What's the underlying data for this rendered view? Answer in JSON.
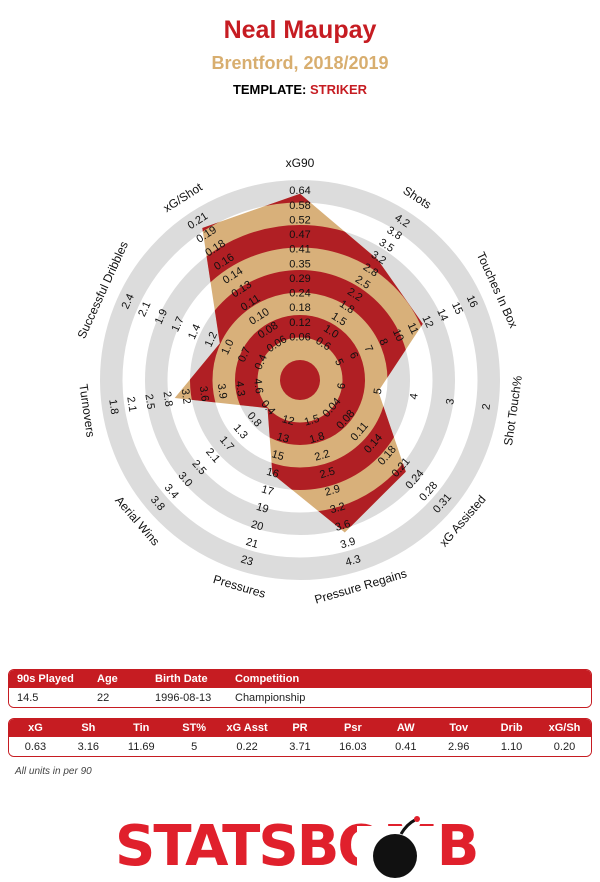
{
  "header": {
    "player": "Neal Maupay",
    "team_season": "Brentford, 2018/2019",
    "template_label": "TEMPLATE:",
    "template_value": "STRIKER"
  },
  "chart_data": {
    "type": "radar",
    "rings": 8,
    "colors": {
      "fill": "#d8b07a",
      "inner": "#b01f24",
      "grid": "#dcdcdc",
      "title": "#c61c22",
      "subtitle": "#d8ae6f"
    },
    "axes": [
      {
        "label": "xG90",
        "ticks": [
          "0.06",
          "0.12",
          "0.18",
          "0.24",
          "0.29",
          "0.35",
          "0.41",
          "0.47",
          "0.52",
          "0.58",
          "0.64"
        ],
        "value": 0.63
      },
      {
        "label": "Shots",
        "ticks": [
          "0.6",
          "1.0",
          "1.5",
          "1.8",
          "2.2",
          "2.5",
          "2.8",
          "3.2",
          "3.5",
          "3.8",
          "4.2"
        ],
        "value": 3.16
      },
      {
        "label": "Touches In Box",
        "ticks": [
          "5",
          "6",
          "7",
          "8",
          "10",
          "11",
          "12",
          "14",
          "15",
          "16"
        ],
        "value": 11.69
      },
      {
        "label": "Shot Touch%",
        "ticks": [
          "6",
          "5",
          "4",
          "3",
          "2"
        ],
        "value": 5
      },
      {
        "label": "xG Assisted",
        "ticks": [
          "0.04",
          "0.08",
          "0.11",
          "0.14",
          "0.18",
          "0.21",
          "0.24",
          "0.28",
          "0.31"
        ],
        "value": 0.22
      },
      {
        "label": "Pressure Regains",
        "ticks": [
          "1.5",
          "1.8",
          "2.2",
          "2.5",
          "2.9",
          "3.2",
          "3.6",
          "3.9",
          "4.3"
        ],
        "value": 3.71
      },
      {
        "label": "Pressures",
        "ticks": [
          "12",
          "13",
          "15",
          "16",
          "17",
          "19",
          "20",
          "21",
          "23"
        ],
        "value": 16.03
      },
      {
        "label": "Aerial Wins",
        "ticks": [
          "0.4",
          "0.8",
          "1.3",
          "1.7",
          "2.1",
          "2.5",
          "3.0",
          "3.4",
          "3.8"
        ],
        "value": 0.41
      },
      {
        "label": "Turnovers",
        "ticks": [
          "4.6",
          "4.3",
          "3.9",
          "3.6",
          "3.2",
          "2.8",
          "2.5",
          "2.1",
          "1.8"
        ],
        "value": 2.96
      },
      {
        "label": "Successful Dribbles",
        "ticks": [
          "0.4",
          "0.7",
          "1.0",
          "1.2",
          "1.4",
          "1.7",
          "1.9",
          "2.1",
          "2.4"
        ],
        "value": 1.1
      },
      {
        "label": "xG/Shot",
        "ticks": [
          "0.06",
          "0.08",
          "0.10",
          "0.11",
          "0.13",
          "0.14",
          "0.16",
          "0.18",
          "0.19",
          "0.21"
        ],
        "value": 0.2
      }
    ]
  },
  "info_table": {
    "headers": [
      "90s Played",
      "Age",
      "Birth Date",
      "Competition"
    ],
    "values": [
      "14.5",
      "22",
      "1996-08-13",
      "Championship"
    ]
  },
  "metrics_table": {
    "headers": [
      "xG",
      "Sh",
      "Tin",
      "ST%",
      "xG Asst",
      "PR",
      "Psr",
      "AW",
      "Tov",
      "Drib",
      "xG/Sh"
    ],
    "values": [
      "0.63",
      "3.16",
      "11.69",
      "5",
      "0.22",
      "3.71",
      "16.03",
      "0.41",
      "2.96",
      "1.10",
      "0.20"
    ]
  },
  "note": "All units in per 90",
  "logo": {
    "text": "STATSBOMB",
    "icon": "bomb-icon"
  }
}
